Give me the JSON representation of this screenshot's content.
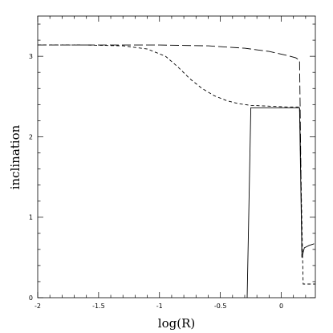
{
  "chart_data": {
    "type": "line",
    "title": "",
    "xlabel": "log(R)",
    "ylabel": "inclination",
    "xlim": [
      -2,
      0.28
    ],
    "ylim": [
      0,
      3.5
    ],
    "x_ticks": [
      {
        "value": -2,
        "label": "-2"
      },
      {
        "value": -1.5,
        "label": "-1.5"
      },
      {
        "value": -1,
        "label": "-1"
      },
      {
        "value": -0.5,
        "label": "-0.5"
      },
      {
        "value": 0,
        "label": "0"
      }
    ],
    "y_ticks": [
      {
        "value": 0,
        "label": "0"
      },
      {
        "value": 1,
        "label": "1"
      },
      {
        "value": 2,
        "label": "2"
      },
      {
        "value": 3,
        "label": "3"
      }
    ],
    "grid": false,
    "legend": "none",
    "series": [
      {
        "style": "solid",
        "x": [
          -0.28,
          -0.25,
          0.0,
          0.15,
          0.17,
          0.19,
          0.23,
          0.27
        ],
        "y": [
          0.0,
          2.36,
          2.36,
          2.36,
          0.5,
          0.62,
          0.65,
          0.67
        ]
      },
      {
        "style": "short-dash",
        "x": [
          -2.0,
          -1.6,
          -1.3,
          -1.1,
          -0.95,
          -0.85,
          -0.75,
          -0.65,
          -0.55,
          -0.45,
          -0.35,
          -0.25,
          -0.1,
          0.05,
          0.15,
          0.18,
          0.2,
          0.28
        ],
        "y": [
          3.14,
          3.14,
          3.13,
          3.09,
          3.0,
          2.87,
          2.72,
          2.6,
          2.51,
          2.45,
          2.41,
          2.39,
          2.38,
          2.37,
          2.37,
          0.17,
          0.17,
          0.17
        ]
      },
      {
        "style": "long-dash",
        "x": [
          -2.0,
          -1.5,
          -1.0,
          -0.6,
          -0.3,
          -0.1,
          0.05,
          0.12,
          0.15,
          0.155,
          0.17
        ],
        "y": [
          3.14,
          3.14,
          3.14,
          3.13,
          3.1,
          3.06,
          3.01,
          2.98,
          2.95,
          2.4,
          0.5
        ]
      }
    ]
  }
}
